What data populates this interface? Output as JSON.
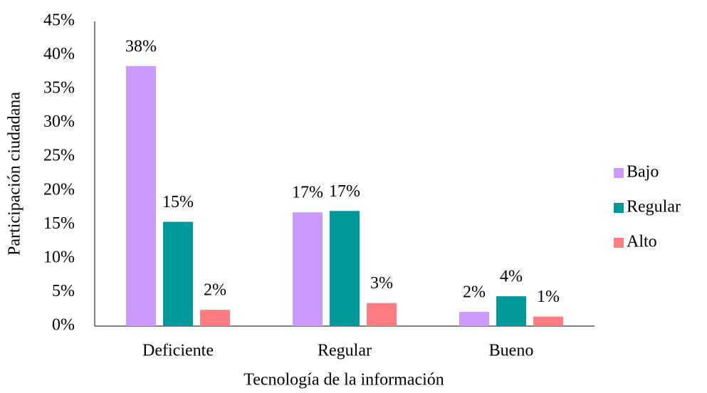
{
  "chart_data": {
    "type": "bar",
    "categories": [
      "Deficiente",
      "Regular",
      "Bueno"
    ],
    "series": [
      {
        "name": "Bajo",
        "color": "#cc99ff",
        "values": [
          38.4,
          16.8,
          2.1
        ],
        "value_labels": [
          "38%",
          "17%",
          "2%"
        ]
      },
      {
        "name": "Regular",
        "color": "#009999",
        "values": [
          15.4,
          17.0,
          4.4
        ],
        "value_labels": [
          "15%",
          "17%",
          "4%"
        ]
      },
      {
        "name": "Alto",
        "color": "#ff7c80",
        "values": [
          2.4,
          3.4,
          1.4
        ],
        "value_labels": [
          "2%",
          "3%",
          "1%"
        ]
      }
    ],
    "xlabel": "Tecnología de la información",
    "ylabel": "Participación ciudadana",
    "ylim": [
      0,
      45
    ],
    "yticks": [
      {
        "value": 0,
        "label": "0%"
      },
      {
        "value": 5,
        "label": "5%"
      },
      {
        "value": 10,
        "label": "10%"
      },
      {
        "value": 15,
        "label": "15%"
      },
      {
        "value": 20,
        "label": "20%"
      },
      {
        "value": 25,
        "label": "25%"
      },
      {
        "value": 30,
        "label": "30%"
      },
      {
        "value": 35,
        "label": "35%"
      },
      {
        "value": 40,
        "label": "40%"
      },
      {
        "value": 45,
        "label": "45%"
      }
    ],
    "grid": false,
    "legend": "right"
  }
}
